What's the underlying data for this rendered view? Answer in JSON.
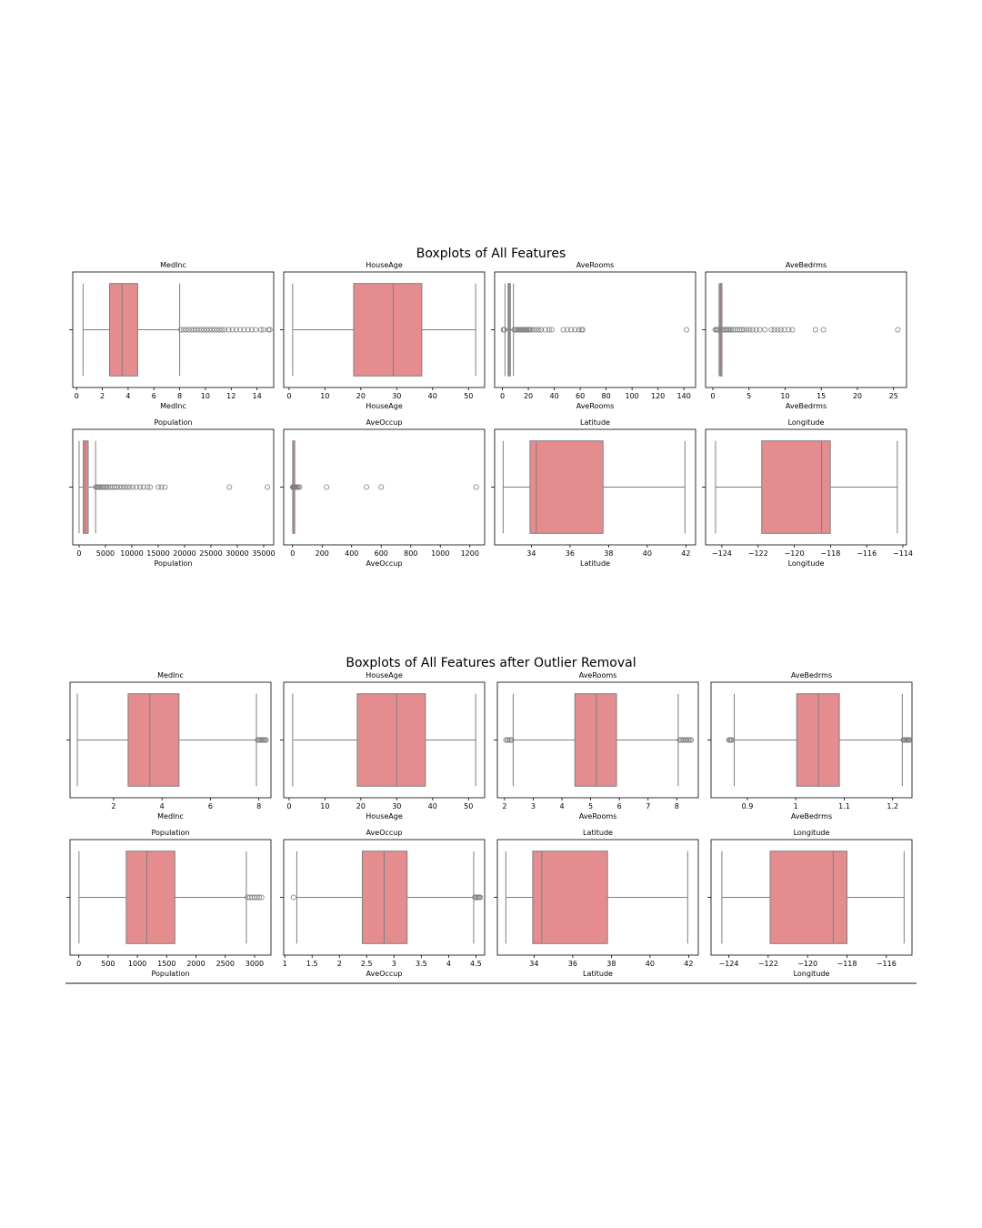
{
  "colors": {
    "box_fill": "#e58c8f",
    "line": "#7f7f7f",
    "frame": "#000000",
    "flier": "#7f7f7f",
    "rule": "#444444"
  },
  "figures": [
    {
      "title": "Boxplots of All Features",
      "chart_data": [
        {
          "type": "box",
          "title": "MedInc",
          "xlabel": "MedInc",
          "xlim": [
            -0.3,
            15.3
          ],
          "ticks": [
            0,
            2,
            4,
            6,
            8,
            10,
            12,
            14
          ],
          "whislo": 0.5,
          "q1": 2.56,
          "median": 3.53,
          "q3": 4.74,
          "whishi": 8.0,
          "fliers": [
            8.1,
            8.3,
            8.5,
            8.7,
            8.9,
            9.1,
            9.3,
            9.5,
            9.7,
            9.9,
            10.1,
            10.3,
            10.5,
            10.7,
            10.9,
            11.1,
            11.3,
            11.5,
            11.8,
            12.1,
            12.4,
            12.7,
            13.0,
            13.3,
            13.6,
            13.9,
            14.3,
            14.5,
            14.9,
            15.0
          ]
        },
        {
          "type": "box",
          "title": "HouseAge",
          "xlabel": "HouseAge",
          "xlim": [
            -1.5,
            54.5
          ],
          "ticks": [
            0,
            10,
            20,
            30,
            40,
            50
          ],
          "whislo": 1,
          "q1": 18,
          "median": 29,
          "q3": 37,
          "whishi": 52,
          "fliers": []
        },
        {
          "type": "box",
          "title": "AveRooms",
          "xlabel": "AveRooms",
          "xlim": [
            -6,
            149
          ],
          "ticks": [
            0,
            20,
            40,
            60,
            80,
            100,
            120,
            140
          ],
          "whislo": 2.0,
          "q1": 4.4,
          "median": 5.2,
          "q3": 6.1,
          "whishi": 8.5,
          "fliers": [
            0.8,
            1.2,
            1.6,
            9,
            10,
            11,
            12,
            13,
            14,
            15,
            16,
            17,
            18,
            19,
            20,
            21,
            22,
            24,
            26,
            28,
            30,
            33,
            36,
            38,
            47,
            50,
            53,
            56,
            59,
            61,
            62,
            142
          ]
        },
        {
          "type": "box",
          "title": "AveBedrms",
          "xlabel": "AveBedrms",
          "xlim": [
            -1.0,
            26.8
          ],
          "ticks": [
            0,
            5,
            10,
            15,
            20,
            25
          ],
          "whislo": 0.87,
          "q1": 1.01,
          "median": 1.05,
          "q3": 1.1,
          "whishi": 1.24,
          "fliers": [
            0.33,
            0.5,
            0.65,
            0.8,
            1.3,
            1.5,
            1.7,
            1.9,
            2.1,
            2.3,
            2.5,
            2.8,
            3.1,
            3.4,
            3.7,
            4.0,
            4.3,
            4.7,
            5.1,
            5.5,
            6.0,
            6.5,
            7.2,
            8.1,
            8.5,
            9.0,
            9.4,
            9.9,
            10.5,
            11.0,
            14.2,
            15.3,
            25.6
          ]
        },
        {
          "type": "box",
          "title": "Population",
          "xlabel": "Population",
          "xlim": [
            -1200,
            36900
          ],
          "ticks": [
            0,
            5000,
            10000,
            15000,
            20000,
            25000,
            30000,
            35000
          ],
          "whislo": 3,
          "q1": 787,
          "median": 1166,
          "q3": 1725,
          "whishi": 3132,
          "fliers": [
            3200,
            3400,
            3600,
            3800,
            4000,
            4300,
            4600,
            4900,
            5200,
            5500,
            5900,
            6300,
            6700,
            7100,
            7600,
            8100,
            8600,
            9100,
            9600,
            10200,
            10900,
            11600,
            12200,
            13000,
            13500,
            15000,
            15600,
            16300,
            28500,
            35700
          ]
        },
        {
          "type": "box",
          "title": "AveOccup",
          "xlabel": "AveOccup",
          "xlim": [
            -60,
            1300
          ],
          "ticks": [
            0,
            200,
            400,
            600,
            800,
            1000,
            1200
          ],
          "whislo": 1.16,
          "q1": 2.43,
          "median": 2.82,
          "q3": 3.28,
          "whishi": 4.56,
          "fliers": [
            0.7,
            5,
            7,
            9,
            12,
            15,
            19,
            24,
            30,
            38,
            47,
            230,
            500,
            600,
            1243
          ]
        },
        {
          "type": "box",
          "title": "Latitude",
          "xlabel": "Latitude",
          "xlim": [
            32.1,
            42.5
          ],
          "ticks": [
            34,
            36,
            38,
            40,
            42
          ],
          "whislo": 32.54,
          "q1": 33.93,
          "median": 34.26,
          "q3": 37.71,
          "whishi": 41.95,
          "fliers": []
        },
        {
          "type": "box",
          "title": "Longitude",
          "xlabel": "Longitude",
          "xlim": [
            -124.9,
            -113.8
          ],
          "ticks": [
            -124,
            -122,
            -120,
            -118,
            -116,
            -114
          ],
          "whislo": -124.35,
          "q1": -121.8,
          "median": -118.49,
          "q3": -118.01,
          "whishi": -114.31,
          "fliers": []
        }
      ]
    },
    {
      "title": "Boxplots of All Features after Outlier Removal",
      "chart_data": [
        {
          "type": "box",
          "title": "MedInc",
          "xlabel": "MedInc",
          "xlim": [
            0.2,
            8.5
          ],
          "ticks": [
            2,
            4,
            6,
            8
          ],
          "whislo": 0.5,
          "q1": 2.6,
          "median": 3.5,
          "q3": 4.7,
          "whishi": 7.9,
          "fliers": [
            7.95,
            8.0,
            8.05,
            8.1,
            8.15,
            8.2,
            8.25,
            8.3
          ]
        },
        {
          "type": "box",
          "title": "HouseAge",
          "xlabel": "HouseAge",
          "xlim": [
            -1.5,
            54.5
          ],
          "ticks": [
            0,
            10,
            20,
            30,
            40,
            50
          ],
          "whislo": 1,
          "q1": 19,
          "median": 30,
          "q3": 38,
          "whishi": 52,
          "fliers": []
        },
        {
          "type": "box",
          "title": "AveRooms",
          "xlabel": "AveRooms",
          "xlim": [
            1.75,
            8.75
          ],
          "ticks": [
            2,
            3,
            4,
            5,
            6,
            7,
            8
          ],
          "whislo": 2.3,
          "q1": 4.45,
          "median": 5.2,
          "q3": 5.9,
          "whishi": 8.05,
          "fliers": [
            2.05,
            2.1,
            2.15,
            2.2,
            2.25,
            8.1,
            8.15,
            8.2,
            8.25,
            8.3,
            8.35,
            8.4,
            8.45,
            8.5
          ]
        },
        {
          "type": "box",
          "title": "AveBedrms",
          "xlabel": "AveBedrms",
          "xlim": [
            0.825,
            1.24
          ],
          "ticks": [
            0.9,
            1.0,
            1.1,
            1.2
          ],
          "whislo": 0.873,
          "q1": 1.002,
          "median": 1.047,
          "q3": 1.09,
          "whishi": 1.22,
          "fliers": [
            0.862,
            0.864,
            0.866,
            0.868,
            1.222,
            1.224,
            1.226,
            1.228,
            1.23,
            1.232,
            1.234,
            1.236
          ]
        },
        {
          "type": "box",
          "title": "Population",
          "xlabel": "Population",
          "xlim": [
            -150,
            3280
          ],
          "ticks": [
            0,
            500,
            1000,
            1500,
            2000,
            2500,
            3000
          ],
          "whislo": 3,
          "q1": 810,
          "median": 1160,
          "q3": 1640,
          "whishi": 2860,
          "fliers": [
            2880,
            2920,
            2960,
            3000,
            3040,
            3080,
            3120
          ]
        },
        {
          "type": "box",
          "title": "AveOccup",
          "xlabel": "AveOccup",
          "xlim": [
            0.98,
            4.66
          ],
          "ticks": [
            1.0,
            1.5,
            2.0,
            2.5,
            3.0,
            3.5,
            4.0,
            4.5
          ],
          "whislo": 1.22,
          "q1": 2.42,
          "median": 2.82,
          "q3": 3.24,
          "whishi": 4.46,
          "fliers": [
            1.16,
            4.48,
            4.5,
            4.52,
            4.54,
            4.56,
            4.58
          ]
        },
        {
          "type": "box",
          "title": "Latitude",
          "xlabel": "Latitude",
          "xlim": [
            32.1,
            42.5
          ],
          "ticks": [
            34,
            36,
            38,
            40,
            42
          ],
          "whislo": 32.54,
          "q1": 33.93,
          "median": 34.4,
          "q3": 37.8,
          "whishi": 41.95,
          "fliers": []
        },
        {
          "type": "box",
          "title": "Longitude",
          "xlabel": "Longitude",
          "xlim": [
            -124.9,
            -114.7
          ],
          "ticks": [
            -124,
            -122,
            -120,
            -118,
            -116
          ],
          "whislo": -124.35,
          "q1": -121.9,
          "median": -118.7,
          "q3": -118.0,
          "whishi": -115.1,
          "fliers": []
        }
      ]
    }
  ]
}
